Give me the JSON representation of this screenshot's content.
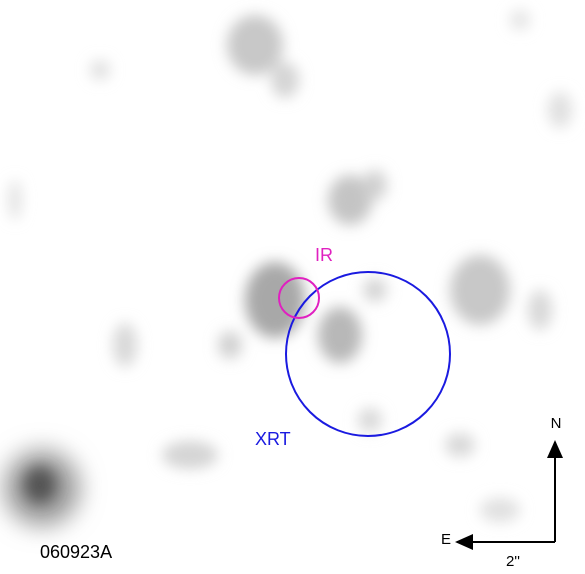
{
  "image": {
    "label": "060923A"
  },
  "annotations": {
    "ir": "IR",
    "xrt": "XRT"
  },
  "compass": {
    "north": "N",
    "east": "E",
    "scale": "2''"
  }
}
